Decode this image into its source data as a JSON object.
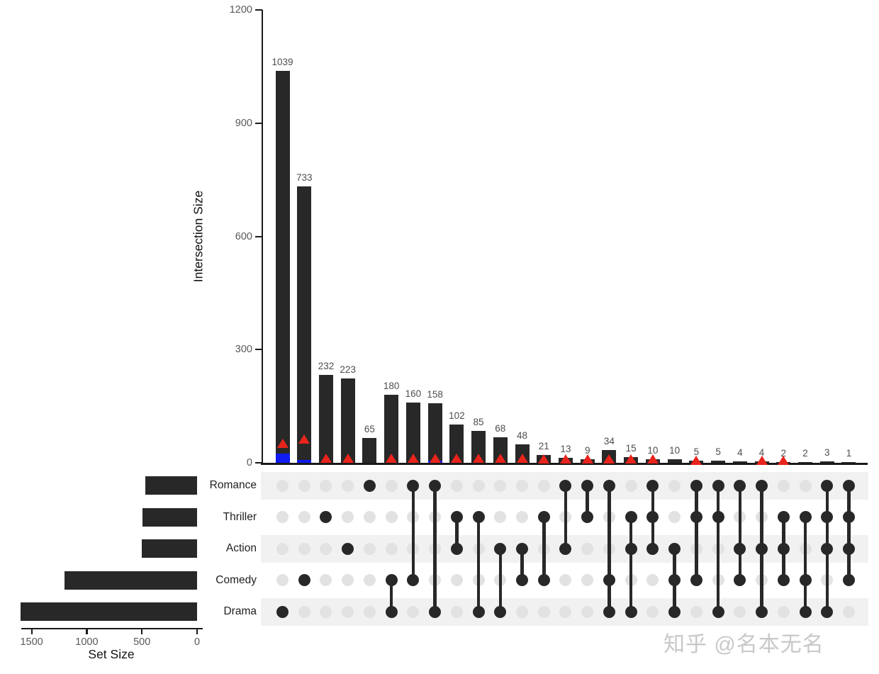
{
  "watermark": {
    "text": "知乎 @名本无名"
  },
  "colors": {
    "bar": "#282828",
    "dot_active": "#282828",
    "dot_inactive": "#e2e2e2",
    "stripe": "#f1f1f1",
    "triangle": "#e8241c",
    "blue_query": "#0f1bf0",
    "axis": "#1a1a1a",
    "tick_label": "#595959",
    "value_label": "#4d4d4d"
  },
  "chart_data": {
    "type": "bar",
    "subtype": "upset-plot",
    "title": "",
    "intersection_axis": {
      "label": "Intersection Size",
      "ticks": [
        0,
        300,
        600,
        900,
        1200
      ],
      "ylim": [
        0,
        1200
      ],
      "grid": false
    },
    "set_axis": {
      "label": "Set Size",
      "ticks": [
        1500,
        1000,
        500,
        0
      ],
      "xlim": [
        0,
        1700
      ],
      "grid": false
    },
    "sets": [
      {
        "name": "Romance",
        "size": 471
      },
      {
        "name": "Thriller",
        "size": 492
      },
      {
        "name": "Action",
        "size": 503
      },
      {
        "name": "Comedy",
        "size": 1200
      },
      {
        "name": "Drama",
        "size": 1603
      }
    ],
    "intersections": [
      {
        "value": 1039,
        "members": [
          "Drama"
        ],
        "triangle": 52,
        "blue": 24
      },
      {
        "value": 733,
        "members": [
          "Comedy"
        ],
        "triangle": 62,
        "blue": 8
      },
      {
        "value": 232,
        "members": [
          "Thriller"
        ],
        "triangle": 13,
        "blue": null
      },
      {
        "value": 223,
        "members": [
          "Action"
        ],
        "triangle": 13,
        "blue": null
      },
      {
        "value": 65,
        "members": [
          "Romance"
        ],
        "triangle": null,
        "blue": null
      },
      {
        "value": 180,
        "members": [
          "Comedy",
          "Drama"
        ],
        "triangle": 13,
        "blue": null
      },
      {
        "value": 160,
        "members": [
          "Romance",
          "Comedy"
        ],
        "triangle": 13,
        "blue": null
      },
      {
        "value": 158,
        "members": [
          "Romance",
          "Drama"
        ],
        "triangle": 13,
        "blue": 6
      },
      {
        "value": 102,
        "members": [
          "Thriller",
          "Action"
        ],
        "triangle": 12,
        "blue": null
      },
      {
        "value": 85,
        "members": [
          "Thriller",
          "Drama"
        ],
        "triangle": 12,
        "blue": null
      },
      {
        "value": 68,
        "members": [
          "Action",
          "Drama"
        ],
        "triangle": 12,
        "blue": null
      },
      {
        "value": 48,
        "members": [
          "Action",
          "Comedy"
        ],
        "triangle": 12,
        "blue": null
      },
      {
        "value": 21,
        "members": [
          "Thriller",
          "Comedy"
        ],
        "triangle": 11,
        "blue": null
      },
      {
        "value": 13,
        "members": [
          "Romance",
          "Action"
        ],
        "triangle": 11,
        "blue": null
      },
      {
        "value": 9,
        "members": [
          "Romance",
          "Thriller"
        ],
        "triangle": 11,
        "blue": null
      },
      {
        "value": 34,
        "members": [
          "Romance",
          "Comedy",
          "Drama"
        ],
        "triangle": 11,
        "blue": null
      },
      {
        "value": 15,
        "members": [
          "Thriller",
          "Action",
          "Drama"
        ],
        "triangle": 11,
        "blue": null
      },
      {
        "value": 10,
        "members": [
          "Romance",
          "Thriller",
          "Action"
        ],
        "triangle": 11,
        "blue": null
      },
      {
        "value": 10,
        "members": [
          "Action",
          "Comedy",
          "Drama"
        ],
        "triangle": null,
        "blue": null
      },
      {
        "value": 5,
        "members": [
          "Romance",
          "Thriller",
          "Comedy"
        ],
        "triangle": 6,
        "blue": null
      },
      {
        "value": 5,
        "members": [
          "Romance",
          "Thriller",
          "Drama"
        ],
        "triangle": null,
        "blue": null
      },
      {
        "value": 4,
        "members": [
          "Romance",
          "Action",
          "Comedy"
        ],
        "triangle": null,
        "blue": null
      },
      {
        "value": 4,
        "members": [
          "Romance",
          "Action",
          "Drama"
        ],
        "triangle": 6,
        "blue": null
      },
      {
        "value": 2,
        "members": [
          "Thriller",
          "Action",
          "Comedy"
        ],
        "triangle": 6,
        "blue": null
      },
      {
        "value": 2,
        "members": [
          "Thriller",
          "Comedy",
          "Drama"
        ],
        "triangle": null,
        "blue": null
      },
      {
        "value": 3,
        "members": [
          "Romance",
          "Thriller",
          "Action",
          "Drama"
        ],
        "triangle": null,
        "blue": null
      },
      {
        "value": 1,
        "members": [
          "Romance",
          "Thriller",
          "Action",
          "Comedy"
        ],
        "triangle": null,
        "blue": null
      }
    ]
  }
}
